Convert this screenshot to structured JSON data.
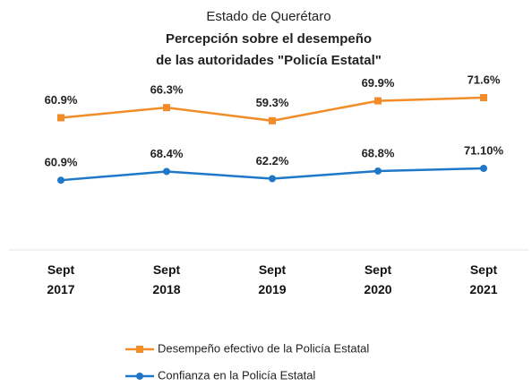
{
  "chart_data": {
    "type": "line",
    "subtitle": "Estado de Querétaro",
    "title": [
      "Percepción sobre el desempeño",
      "de las autoridades \"Policía Estatal\""
    ],
    "categories": [
      "Sept 2017",
      "Sept 2018",
      "Sept 2019",
      "Sept 2020",
      "Sept 2021"
    ],
    "series": [
      {
        "name": "Desempeño efectivo de la Policía Estatal",
        "color": "#f28c28",
        "marker": "square",
        "axis": "y2",
        "values": [
          60.9,
          66.3,
          59.3,
          69.9,
          71.6
        ],
        "value_labels": [
          "60.9%",
          "66.3%",
          "59.3%",
          "69.9%",
          "71.6%"
        ]
      },
      {
        "name": "Confianza en la Policía Estatal",
        "color": "#1f77c8",
        "marker": "circle",
        "values": [
          60.9,
          68.4,
          62.2,
          68.8,
          71.1
        ],
        "value_labels": [
          "60.9%",
          "68.4%",
          "62.2%",
          "68.8%",
          "71.10%"
        ]
      }
    ],
    "ylim": [
      0,
      170
    ],
    "y2lim": [
      -10,
      95
    ],
    "grid": false,
    "legend": "bottom"
  }
}
